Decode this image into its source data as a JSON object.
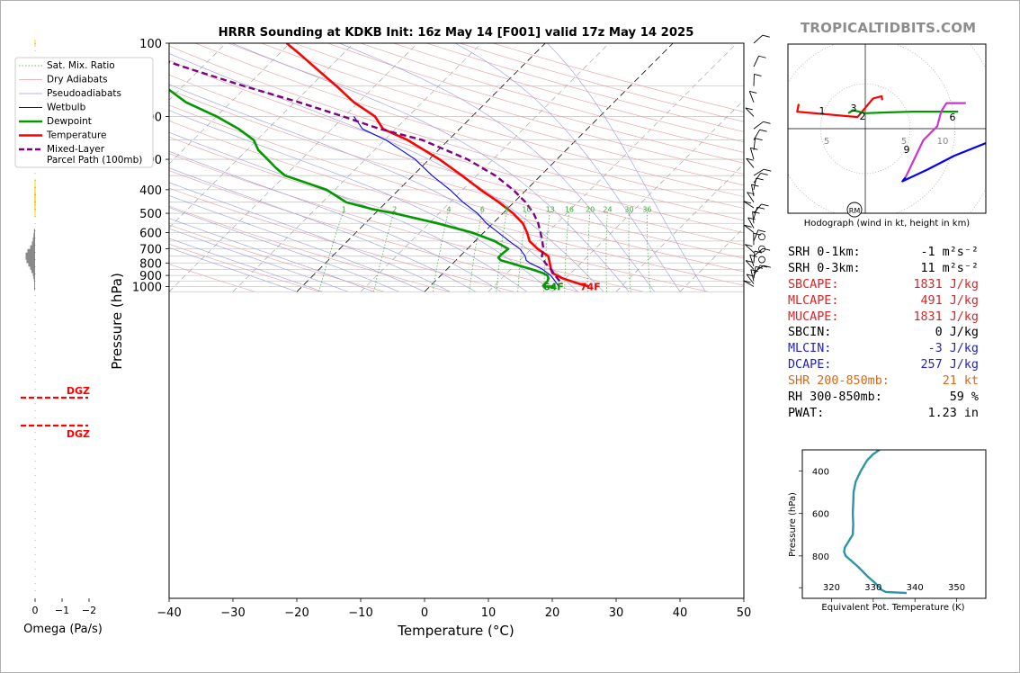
{
  "title": "HRRR Sounding at KDKB Init: 16z May 14 [F001] valid 17z May 14 2025",
  "brand": "TROPICALTIDBITS.COM",
  "omega": {
    "xlabel": "Omega (Pa/s)",
    "ticks": [
      "0",
      "−1",
      "−2"
    ],
    "dgz_label": "DGZ"
  },
  "chart_data": [
    {
      "type": "line",
      "name": "skew-t",
      "xlabel": "Temperature (°C)",
      "ylabel": "Pressure (hPa)",
      "xlim": [
        -40,
        50
      ],
      "ylim": [
        1050,
        100
      ],
      "y_scale": "log",
      "skew_deg_per_decade_equivalent": "skewed isotherms",
      "x_ticks": [
        "−40",
        "−30",
        "−20",
        "−10",
        "0",
        "10",
        "20",
        "30",
        "40",
        "50"
      ],
      "y_ticks": [
        "100",
        "200",
        "300",
        "400",
        "500",
        "600",
        "700",
        "800",
        "900",
        "1000"
      ],
      "legend": {
        "placement": "upper-left",
        "entries": [
          "Sat. Mix. Ratio",
          "Dry Adiabats",
          "Pseudoadiabats",
          "Wetbulb",
          "Dewpoint",
          "Temperature",
          "Mixed-Layer\nParcel Path (100mb)"
        ]
      },
      "mixing_ratio_labels": [
        "1",
        "2",
        "4",
        "6",
        "8",
        "10",
        "13",
        "16",
        "20",
        "24",
        "30",
        "36"
      ],
      "surface_labels": {
        "dewpoint": "64F",
        "temperature": "74F"
      },
      "series": [
        {
          "name": "Temperature",
          "color": "#ff0000",
          "points": [
            [
              1000,
              25.0
            ],
            [
              980,
              23.4
            ],
            [
              950,
              21.3
            ],
            [
              925,
              19.5
            ],
            [
              900,
              18.2
            ],
            [
              880,
              17.1
            ],
            [
              850,
              16.3
            ],
            [
              800,
              15.1
            ],
            [
              780,
              14.6
            ],
            [
              750,
              13.8
            ],
            [
              700,
              11.0
            ],
            [
              650,
              8.5
            ],
            [
              600,
              6.8
            ],
            [
              550,
              4.7
            ],
            [
              500,
              1.6
            ],
            [
              450,
              -2.4
            ],
            [
              400,
              -7.2
            ],
            [
              350,
              -12.3
            ],
            [
              300,
              -18.4
            ],
            [
              250,
              -26.4
            ],
            [
              225,
              -32.0
            ],
            [
              200,
              -35.2
            ],
            [
              175,
              -40.7
            ],
            [
              150,
              -46.0
            ],
            [
              125,
              -52.5
            ],
            [
              110,
              -57.0
            ],
            [
              100,
              -60.5
            ]
          ]
        },
        {
          "name": "Dewpoint",
          "color": "#009900",
          "points": [
            [
              1000,
              17.7
            ],
            [
              980,
              17.6
            ],
            [
              950,
              17.6
            ],
            [
              925,
              17.3
            ],
            [
              900,
              16.7
            ],
            [
              880,
              15.6
            ],
            [
              850,
              13.3
            ],
            [
              800,
              8.9
            ],
            [
              780,
              7.0
            ],
            [
              760,
              6.2
            ],
            [
              740,
              6.2
            ],
            [
              700,
              6.4
            ],
            [
              650,
              3.0
            ],
            [
              600,
              -1.8
            ],
            [
              550,
              -8.6
            ],
            [
              500,
              -17.0
            ],
            [
              480,
              -21.2
            ],
            [
              450,
              -26.3
            ],
            [
              400,
              -31.3
            ],
            [
              350,
              -40.0
            ],
            [
              325,
              -42.7
            ],
            [
              300,
              -45.3
            ],
            [
              275,
              -48.2
            ],
            [
              250,
              -50.5
            ],
            [
              225,
              -54.6
            ],
            [
              200,
              -60.0
            ],
            [
              175,
              -67.0
            ],
            [
              150,
              -73.0
            ],
            [
              125,
              -76.0
            ],
            [
              110,
              -78.5
            ],
            [
              100,
              -80.0
            ]
          ]
        },
        {
          "name": "Wetbulb",
          "color": "#0000ff",
          "points": [
            [
              1000,
              20.2
            ],
            [
              950,
              18.8
            ],
            [
              900,
              17.2
            ],
            [
              850,
              15.0
            ],
            [
              800,
              12.0
            ],
            [
              780,
              11.0
            ],
            [
              750,
              10.2
            ],
            [
              700,
              8.2
            ],
            [
              650,
              5.3
            ],
            [
              600,
              2.3
            ],
            [
              550,
              -1.0
            ],
            [
              500,
              -4.0
            ],
            [
              450,
              -8.0
            ],
            [
              400,
              -12.0
            ],
            [
              350,
              -17.0
            ],
            [
              300,
              -22.2
            ],
            [
              250,
              -29.8
            ],
            [
              225,
              -35.2
            ],
            [
              200,
              -38.5
            ]
          ]
        },
        {
          "name": "Mixed-Layer Parcel Path (100mb)",
          "color": "#800080",
          "points": [
            [
              950,
              19.5
            ],
            [
              900,
              17.9
            ],
            [
              850,
              16.3
            ],
            [
              800,
              14.4
            ],
            [
              750,
              12.8
            ],
            [
              700,
              11.9
            ],
            [
              650,
              10.5
            ],
            [
              600,
              8.9
            ],
            [
              550,
              7.1
            ],
            [
              500,
              4.8
            ],
            [
              450,
              1.8
            ],
            [
              400,
              -2.1
            ],
            [
              350,
              -7.1
            ],
            [
              300,
              -14.0
            ],
            [
              250,
              -24.1
            ],
            [
              225,
              -32.5
            ],
            [
              200,
              -40.2
            ],
            [
              175,
              -49.3
            ],
            [
              150,
              -60.5
            ],
            [
              125,
              -73.0
            ],
            [
              110,
              -81.5
            ],
            [
              100,
              -87.5
            ]
          ]
        }
      ]
    },
    {
      "type": "line",
      "name": "hodograph",
      "xlabel": "Hodograph (wind in kt, height in km)",
      "ring_labels": [
        "5",
        "5",
        "10"
      ],
      "height_labels": [
        "1",
        "2",
        "3",
        "6",
        "9"
      ],
      "storm_motion_label": "RM",
      "series": [
        {
          "name": "0-3 km",
          "color": "#ff0000",
          "points": [
            [
              -8.6,
              3.2
            ],
            [
              -8.8,
              2.2
            ],
            [
              -1.0,
              1.5
            ],
            [
              1.0,
              3.9
            ],
            [
              2.1,
              4.2
            ],
            [
              2.2,
              3.7
            ]
          ]
        },
        {
          "name": "3-6 km",
          "color": "#009900",
          "points": [
            [
              -2.2,
              2.0
            ],
            [
              -1.6,
              2.4
            ],
            [
              0.0,
              2.0
            ],
            [
              3.0,
              2.1
            ],
            [
              6.0,
              2.2
            ],
            [
              9.0,
              2.2
            ],
            [
              12.0,
              2.2
            ]
          ]
        },
        {
          "name": "6-9 km",
          "color": "#cc33cc",
          "points": [
            [
              13.0,
              3.3
            ],
            [
              10.5,
              3.3
            ],
            [
              9.8,
              2.2
            ],
            [
              9.3,
              0.3
            ],
            [
              7.5,
              -1.5
            ],
            [
              5.2,
              -6.3
            ]
          ]
        },
        {
          "name": "9+ km",
          "color": "#0000ff",
          "points": [
            [
              5.2,
              -6.3
            ],
            [
              4.8,
              -6.8
            ],
            [
              8.0,
              -5.3
            ],
            [
              11.5,
              -3.5
            ],
            [
              17.0,
              -1.3
            ],
            [
              21.0,
              0.4
            ]
          ]
        }
      ]
    },
    {
      "type": "line",
      "name": "theta-e",
      "xlabel": "Equivalent Pot. Temperature (K)",
      "ylabel": "Pressure (hPa)",
      "xlim": [
        313,
        357
      ],
      "ylim": [
        1000,
        300
      ],
      "x_ticks": [
        "320",
        "330",
        "340",
        "350"
      ],
      "y_ticks": [
        "400",
        "600",
        "800"
      ],
      "series": [
        {
          "name": "Theta-E",
          "color": "#2b95a8",
          "points": [
            [
              975,
              338.0
            ],
            [
              970,
              333.0
            ],
            [
              960,
              332.0
            ],
            [
              950,
              331.6
            ],
            [
              925,
              330.3
            ],
            [
              900,
              328.8
            ],
            [
              850,
              326.3
            ],
            [
              800,
              323.4
            ],
            [
              780,
              323.0
            ],
            [
              760,
              323.2
            ],
            [
              700,
              325.1
            ],
            [
              650,
              325.2
            ],
            [
              600,
              325.1
            ],
            [
              550,
              325.2
            ],
            [
              500,
              325.3
            ],
            [
              450,
              325.8
            ],
            [
              400,
              327.0
            ],
            [
              350,
              328.5
            ],
            [
              320,
              330.0
            ],
            [
              300,
              331.5
            ]
          ]
        }
      ]
    }
  ],
  "stats": [
    {
      "label": "SRH 0-1km:",
      "value": "-1",
      "unit": "m²s⁻²",
      "color": "#000000"
    },
    {
      "label": "SRH 0-3km:",
      "value": "11",
      "unit": "m²s⁻²",
      "color": "#000000"
    },
    {
      "label": "SBCAPE:",
      "value": "1831 J/kg",
      "unit": "",
      "color": "#d62728"
    },
    {
      "label": "MLCAPE:",
      "value": "491 J/kg",
      "unit": "",
      "color": "#d62728"
    },
    {
      "label": "MUCAPE:",
      "value": "1831 J/kg",
      "unit": "",
      "color": "#d62728"
    },
    {
      "label": "SBCIN:",
      "value": "0 J/kg",
      "unit": "",
      "color": "#000000"
    },
    {
      "label": "MLCIN:",
      "value": "-3 J/kg",
      "unit": "",
      "color": "#1f1fcc"
    },
    {
      "label": "DCAPE:",
      "value": "257 J/kg",
      "unit": "",
      "color": "#1f1fcc"
    },
    {
      "label": "SHR 200-850mb:",
      "value": "21 kt",
      "unit": "",
      "color": "#d2691e"
    },
    {
      "label": "RH 300-850mb:",
      "value": "59 %",
      "unit": "",
      "color": "#000000"
    },
    {
      "label": "PWAT:",
      "value": "1.23 in",
      "unit": "",
      "color": "#000000"
    }
  ]
}
